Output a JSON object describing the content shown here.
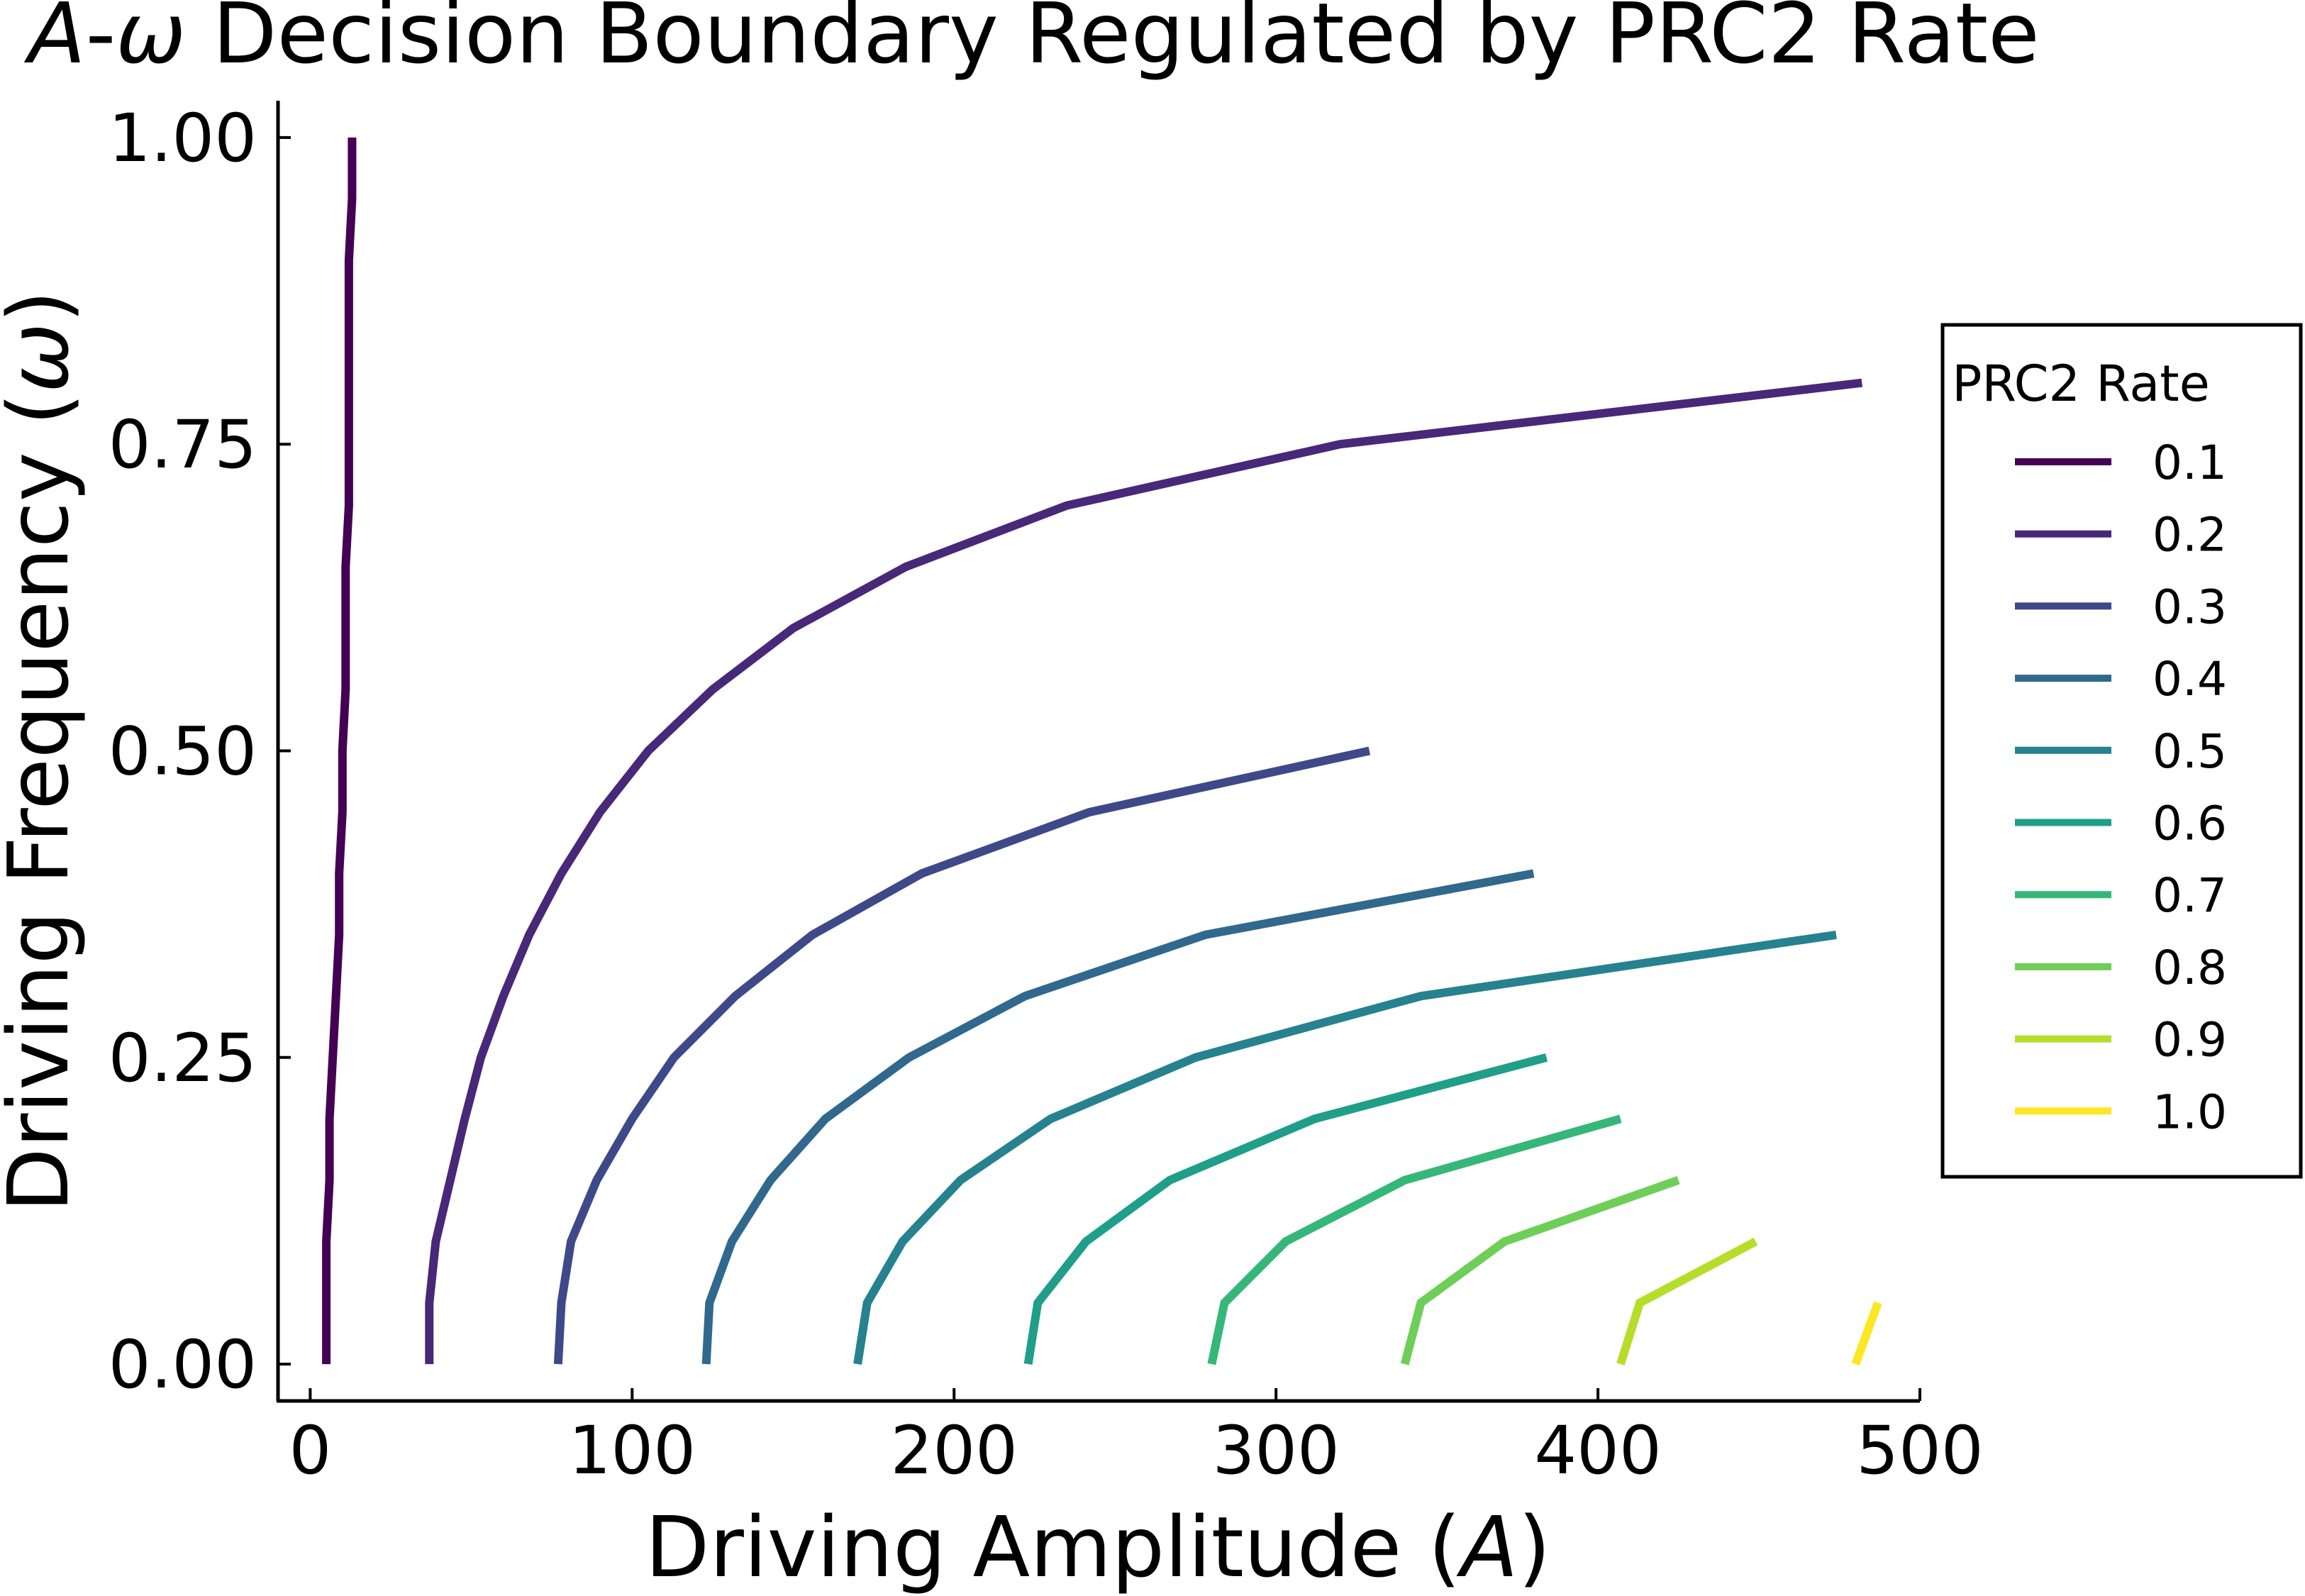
{
  "chart_data": {
    "type": "line",
    "title_italic": "A",
    "title_dash": "-",
    "title_omega": "ω",
    "title_rest": " Decision Boundary Regulated by PRC2 Rate",
    "xlabel_prefix": "Driving Amplitude (",
    "xlabel_symbol": "A",
    "xlabel_suffix": ")",
    "ylabel_prefix": "Driving Frequency (",
    "ylabel_symbol": "ω",
    "ylabel_suffix": ")",
    "xlim": [
      -10,
      500
    ],
    "ylim": [
      -0.03,
      1.03
    ],
    "xticks": [
      "0",
      "100",
      "200",
      "300",
      "400",
      "500"
    ],
    "yticks": [
      "0.00",
      "0.25",
      "0.50",
      "0.75",
      "1.00"
    ],
    "grid": false,
    "legend_position": "right",
    "legend": {
      "title": "PRC2 Rate",
      "entries": [
        "0.1",
        "0.2",
        "0.3",
        "0.4",
        "0.5",
        "0.6",
        "0.7",
        "0.8",
        "0.9",
        "1.0"
      ]
    },
    "colors": [
      "#440154",
      "#482878",
      "#3e4989",
      "#31688e",
      "#26828e",
      "#1f9e89",
      "#35b779",
      "#6ece58",
      "#b5de2b",
      "#fde725"
    ],
    "series": [
      {
        "name": "0.1",
        "points": [
          [
            5,
            0.0
          ],
          [
            5,
            0.1
          ],
          [
            6,
            0.15
          ],
          [
            6,
            0.2
          ],
          [
            8,
            0.3
          ],
          [
            9,
            0.35
          ],
          [
            9,
            0.4
          ],
          [
            10,
            0.45
          ],
          [
            10,
            0.5
          ],
          [
            11,
            0.55
          ],
          [
            11,
            0.6
          ],
          [
            11,
            0.65
          ],
          [
            12,
            0.7
          ],
          [
            12,
            0.8
          ],
          [
            12,
            0.9
          ],
          [
            13,
            0.95
          ],
          [
            13,
            1.0
          ]
        ]
      },
      {
        "name": "0.2",
        "points": [
          [
            37,
            0.0
          ],
          [
            37,
            0.05
          ],
          [
            39,
            0.1
          ],
          [
            48,
            0.2
          ],
          [
            53,
            0.25
          ],
          [
            60,
            0.3
          ],
          [
            68,
            0.35
          ],
          [
            78,
            0.4
          ],
          [
            90,
            0.45
          ],
          [
            105,
            0.5
          ],
          [
            125,
            0.55
          ],
          [
            150,
            0.6
          ],
          [
            185,
            0.65
          ],
          [
            235,
            0.7
          ],
          [
            320,
            0.75
          ],
          [
            482,
            0.8
          ]
        ]
      },
      {
        "name": "0.3",
        "points": [
          [
            77,
            0.0
          ],
          [
            78,
            0.05
          ],
          [
            81,
            0.1
          ],
          [
            89,
            0.15
          ],
          [
            100,
            0.2
          ],
          [
            113,
            0.25
          ],
          [
            132,
            0.3
          ],
          [
            156,
            0.35
          ],
          [
            190,
            0.4
          ],
          [
            242,
            0.45
          ],
          [
            329,
            0.5
          ]
        ]
      },
      {
        "name": "0.4",
        "points": [
          [
            123,
            0.0
          ],
          [
            124,
            0.05
          ],
          [
            131,
            0.1
          ],
          [
            143,
            0.15
          ],
          [
            160,
            0.2
          ],
          [
            186,
            0.25
          ],
          [
            222,
            0.3
          ],
          [
            278,
            0.35
          ],
          [
            380,
            0.4
          ]
        ]
      },
      {
        "name": "0.5",
        "points": [
          [
            170,
            0.0
          ],
          [
            173,
            0.05
          ],
          [
            184,
            0.1
          ],
          [
            202,
            0.15
          ],
          [
            230,
            0.2
          ],
          [
            275,
            0.25
          ],
          [
            345,
            0.3
          ],
          [
            474,
            0.35
          ]
        ]
      },
      {
        "name": "0.6",
        "points": [
          [
            223,
            0.0
          ],
          [
            226,
            0.05
          ],
          [
            241,
            0.1
          ],
          [
            267,
            0.15
          ],
          [
            312,
            0.2
          ],
          [
            384,
            0.25
          ]
        ]
      },
      {
        "name": "0.7",
        "points": [
          [
            280,
            0.0
          ],
          [
            284,
            0.05
          ],
          [
            303,
            0.1
          ],
          [
            340,
            0.15
          ],
          [
            407,
            0.2
          ]
        ]
      },
      {
        "name": "0.8",
        "points": [
          [
            340,
            0.0
          ],
          [
            345,
            0.05
          ],
          [
            371,
            0.1
          ],
          [
            425,
            0.15
          ]
        ]
      },
      {
        "name": "0.9",
        "points": [
          [
            407,
            0.0
          ],
          [
            413,
            0.05
          ],
          [
            449,
            0.1
          ]
        ]
      },
      {
        "name": "1.0",
        "points": [
          [
            480,
            0.0
          ],
          [
            487,
            0.05
          ]
        ]
      }
    ]
  }
}
